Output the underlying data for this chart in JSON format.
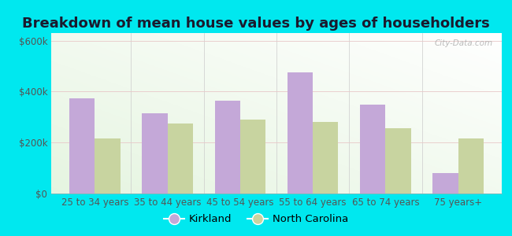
{
  "title": "Breakdown of mean house values by ages of householders",
  "categories": [
    "25 to 34 years",
    "35 to 44 years",
    "45 to 54 years",
    "55 to 64 years",
    "65 to 74 years",
    "75 years+"
  ],
  "kirkland_values": [
    375000,
    315000,
    365000,
    475000,
    350000,
    80000
  ],
  "nc_values": [
    215000,
    275000,
    290000,
    280000,
    257000,
    215000
  ],
  "kirkland_color": "#c4a8d8",
  "nc_color": "#c8d4a0",
  "background_outer": "#00e8ef",
  "ylabel_ticks": [
    "$0",
    "$200k",
    "$400k",
    "$600k"
  ],
  "ytick_values": [
    0,
    200000,
    400000,
    600000
  ],
  "ylim": [
    0,
    630000
  ],
  "legend_kirkland": "Kirkland",
  "legend_nc": "North Carolina",
  "bar_width": 0.35,
  "title_fontsize": 13,
  "tick_fontsize": 8.5,
  "legend_fontsize": 9.5
}
